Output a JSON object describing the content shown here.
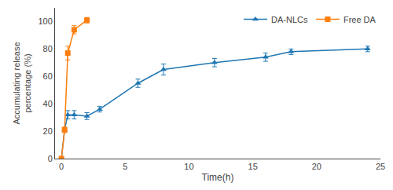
{
  "chart_data": {
    "type": "line",
    "xlabel": "Time(h)",
    "ylabel": "Accumulating release\npercentage (%)",
    "series": [
      {
        "name": "DA-NLCs",
        "marker": "triangle",
        "x": [
          0,
          0.25,
          0.5,
          1,
          2,
          3,
          6,
          8,
          12,
          16,
          18,
          24
        ],
        "values": [
          0,
          21,
          32,
          32,
          31,
          36,
          55,
          65,
          70,
          74,
          78,
          80
        ],
        "yerr": [
          0,
          1.5,
          3,
          3,
          2.5,
          2,
          3,
          4,
          3,
          3,
          2,
          2
        ]
      },
      {
        "name": "Free DA",
        "marker": "square",
        "x": [
          0,
          0.25,
          0.5,
          1,
          2
        ],
        "values": [
          0,
          21,
          77,
          94,
          101
        ],
        "yerr": [
          0,
          2,
          5,
          3,
          2
        ]
      }
    ],
    "xlim": [
      -0.5,
      25
    ],
    "ylim": [
      0,
      110
    ],
    "xticks": [
      0,
      5,
      10,
      15,
      20,
      25
    ],
    "yticks": [
      0,
      20,
      40,
      60,
      80,
      100
    ],
    "grid": false,
    "legend": "upper right"
  }
}
